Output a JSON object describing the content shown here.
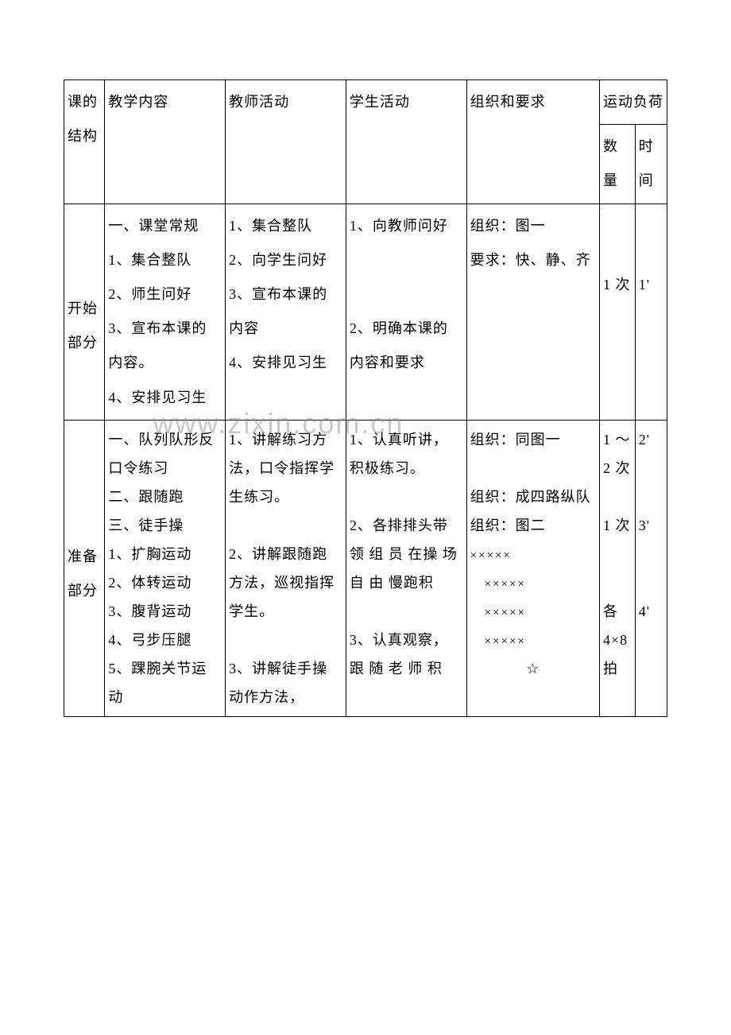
{
  "header": {
    "c0": "课的结构",
    "c1": "教学内容",
    "c2": "教师活动",
    "c3": "学生活动",
    "c4": "组织和要求",
    "load": "运动负荷",
    "qty": "数量",
    "time": "时间"
  },
  "row1": {
    "c0": "开始部分",
    "c1": "一、课堂常规\n1、集合整队\n2、师生问好\n3、宣布本课的内容。\n4、安排见习生",
    "c2": "1、集合整队\n2、向学生问好\n3、宣布本课的内容\n4、安排见习生",
    "c3": "1、向教师问好\n\n\n2、明确本课的内容和要求",
    "c4": "组织：图一\n要求：快、静、齐",
    "c5": "1 次",
    "c6": "1'"
  },
  "row2": {
    "c0": "准备部分",
    "c1": "一、队列队形反口令练习\n二、跟随跑\n三、徒手操\n1、扩胸运动\n2、体转运动\n3、腹背运动\n4、弓步压腿\n5、踝腕关节运动",
    "c2": "1、讲解练习方法，口令指挥学生练习。\n\n2、讲解跟随跑方法，巡视指挥学生。\n\n3、讲解徒手操动作方法，",
    "c3": "1、认真听讲，积极练习。\n\n2、各排排头带 领 组 员 在操 场 自 由 慢跑积\n\n3、认真观察，跟 随 老 师 积",
    "c4_a": "组织：同图一",
    "c4_b": "组织：成四路纵队",
    "c4_c": "组织：图二",
    "marks1": "×××××",
    "marks2": "×××××",
    "marks3": "×××××",
    "marks4": "×××××",
    "star": "☆",
    "c5": "1 ～2 次\n\n1 次\n\n\n各4×8拍",
    "c6": "2'\n\n\n3'\n\n\n4'"
  },
  "watermark": "www.zixin.com.cn"
}
